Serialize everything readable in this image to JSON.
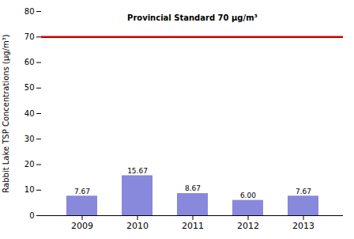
{
  "chart_data": {
    "type": "bar",
    "categories": [
      "2009",
      "2010",
      "2011",
      "2012",
      "2013"
    ],
    "values": [
      7.67,
      15.67,
      8.67,
      6.0,
      7.67
    ],
    "value_labels": [
      "7.67",
      "15.67",
      "8.67",
      "6.00",
      "7.67"
    ],
    "data_labels": true,
    "color": "#8888dd",
    "ylim": [
      0,
      80
    ],
    "yticks": [
      0,
      10,
      20,
      30,
      40,
      50,
      60,
      70,
      80
    ],
    "ylabel": "Rabbit Lake TSP Concentrations (μg/m³)",
    "reference_lines": [
      {
        "value": 70,
        "color": "#cc0000"
      }
    ],
    "annotations": [
      {
        "text": "Provincial Standard 70 μg/m³"
      }
    ],
    "grid": false
  }
}
